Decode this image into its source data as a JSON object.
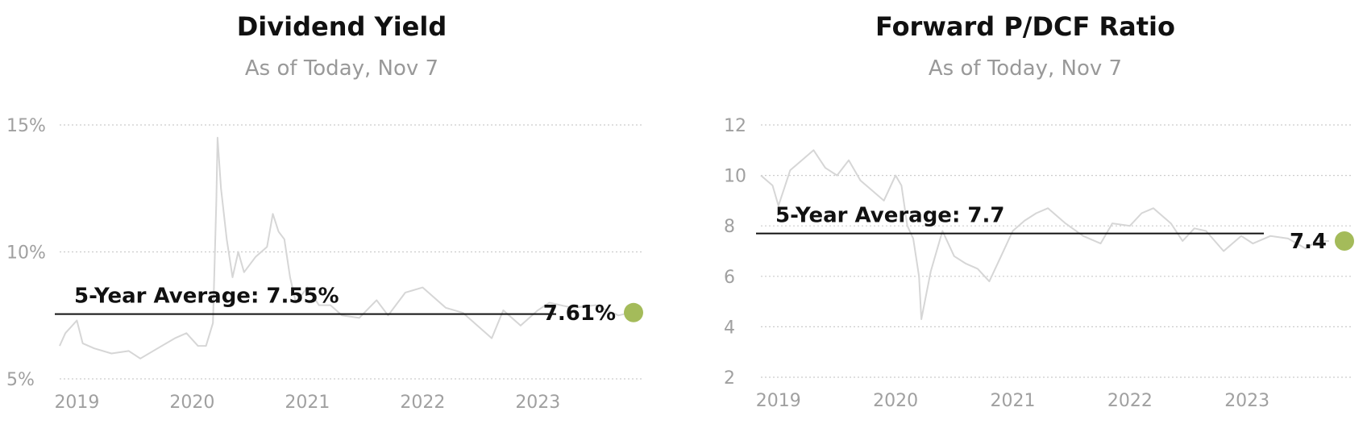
{
  "charts": {
    "dividend_yield": {
      "title": "Dividend Yield",
      "subtitle": "As of Today, Nov 7",
      "current_label": "7.61%",
      "avg_label": "5-Year Average: 7.55%"
    },
    "pdcf": {
      "title": "Forward P/DCF Ratio",
      "subtitle": "As of Today, Nov 7",
      "current_label": "7.4",
      "avg_label": "5-Year Average: 7.7"
    }
  },
  "colors": {
    "series": "#d6d6d6",
    "grid": "#cccccc",
    "average_line": "#111111",
    "current_marker": "#a4bb5a"
  },
  "chart_data": [
    {
      "type": "line",
      "title": "Dividend Yield",
      "subtitle": "As of Today, Nov 7",
      "xlabel": "",
      "ylabel": "",
      "x_ticks": [
        "2019",
        "2020",
        "2021",
        "2022",
        "2023"
      ],
      "y_ticks": [
        "5%",
        "10%",
        "15%"
      ],
      "ylim": [
        5,
        15
      ],
      "xlim": [
        2018.85,
        2023.9
      ],
      "grid": true,
      "average": 7.55,
      "current": 7.61,
      "series": [
        {
          "x": [
            2018.85,
            2018.9,
            2019.0,
            2019.05,
            2019.15,
            2019.3,
            2019.45,
            2019.55,
            2019.7,
            2019.85,
            2019.95,
            2020.05,
            2020.12,
            2020.18,
            2020.21,
            2020.22,
            2020.25,
            2020.3,
            2020.35,
            2020.4,
            2020.45,
            2020.55,
            2020.65,
            2020.7,
            2020.75,
            2020.8,
            2020.85,
            2020.9,
            2021.0,
            2021.1,
            2021.2,
            2021.3,
            2021.45,
            2021.6,
            2021.7,
            2021.85,
            2022.0,
            2022.2,
            2022.35,
            2022.45,
            2022.6,
            2022.7,
            2022.85,
            2023.0,
            2023.1,
            2023.3,
            2023.5,
            2023.7,
            2023.8
          ],
          "y": [
            6.3,
            6.8,
            7.3,
            6.4,
            6.2,
            6.0,
            6.1,
            5.8,
            6.2,
            6.6,
            6.8,
            6.3,
            6.3,
            7.2,
            12.0,
            14.5,
            12.5,
            10.5,
            9.0,
            10.0,
            9.2,
            9.8,
            10.2,
            11.5,
            10.8,
            10.5,
            9.0,
            8.0,
            8.6,
            7.9,
            7.9,
            7.5,
            7.4,
            8.1,
            7.5,
            8.4,
            8.6,
            7.8,
            7.6,
            7.2,
            6.6,
            7.7,
            7.1,
            7.7,
            8.0,
            7.8,
            7.9,
            7.5,
            7.61
          ]
        }
      ]
    },
    {
      "type": "line",
      "title": "Forward P/DCF Ratio",
      "subtitle": "As of Today, Nov 7",
      "xlabel": "",
      "ylabel": "",
      "x_ticks": [
        "2019",
        "2020",
        "2021",
        "2022",
        "2023"
      ],
      "y_ticks": [
        "2",
        "4",
        "6",
        "8",
        "10",
        "12"
      ],
      "ylim": [
        2,
        12
      ],
      "xlim": [
        2018.85,
        2023.9
      ],
      "grid": true,
      "average": 7.7,
      "current": 7.4,
      "series": [
        {
          "x": [
            2018.85,
            2018.95,
            2019.0,
            2019.05,
            2019.1,
            2019.2,
            2019.3,
            2019.4,
            2019.5,
            2019.6,
            2019.7,
            2019.8,
            2019.9,
            2020.0,
            2020.05,
            2020.1,
            2020.15,
            2020.2,
            2020.22,
            2020.3,
            2020.4,
            2020.5,
            2020.6,
            2020.7,
            2020.8,
            2020.9,
            2021.0,
            2021.1,
            2021.2,
            2021.3,
            2021.45,
            2021.6,
            2021.75,
            2021.85,
            2022.0,
            2022.1,
            2022.2,
            2022.35,
            2022.45,
            2022.55,
            2022.65,
            2022.8,
            2022.95,
            2023.05,
            2023.2,
            2023.35,
            2023.5,
            2023.6,
            2023.7
          ],
          "y": [
            10.0,
            9.6,
            8.8,
            9.5,
            10.2,
            10.6,
            11.0,
            10.3,
            10.0,
            10.6,
            9.8,
            9.4,
            9.0,
            10.0,
            9.6,
            8.0,
            7.5,
            6.0,
            4.3,
            6.2,
            7.8,
            6.8,
            6.5,
            6.3,
            5.8,
            6.8,
            7.8,
            8.2,
            8.5,
            8.7,
            8.1,
            7.6,
            7.3,
            8.1,
            8.0,
            8.5,
            8.7,
            8.1,
            7.4,
            7.9,
            7.8,
            7.0,
            7.6,
            7.3,
            7.6,
            7.5,
            7.1,
            7.4,
            7.4
          ]
        }
      ]
    }
  ]
}
